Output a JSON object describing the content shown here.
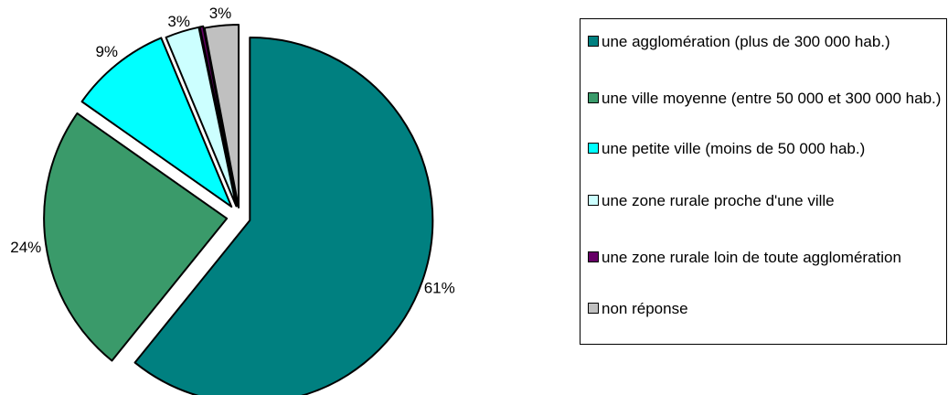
{
  "chart_data": {
    "type": "pie",
    "title": "",
    "categories": [
      "une agglomération (plus de 300 000 hab.)",
      "une ville moyenne (entre 50 000 et 300 000 hab.)",
      "une petite ville (moins de 50 000 hab.)",
      "une zone rurale proche d'une ville",
      "une zone rurale loin de toute agglomération",
      "non réponse"
    ],
    "values": [
      61,
      24,
      9,
      3,
      0.3,
      3
    ],
    "labels": [
      "61%",
      "24%",
      "9%",
      "3%",
      "",
      "3%"
    ],
    "colors": [
      "#008080",
      "#3A9A6A",
      "#00FFFF",
      "#CCFFFF",
      "#660066",
      "#C0C0C0"
    ],
    "legend_position": "right"
  },
  "legend": {
    "items": [
      "une agglomération (plus de 300 000 hab.)",
      "une ville moyenne (entre 50 000 et 300 000 hab.)",
      "une petite ville (moins de 50 000 hab.)",
      "une zone rurale proche d'une ville",
      "une zone rurale loin de toute agglomération",
      "non réponse"
    ]
  }
}
